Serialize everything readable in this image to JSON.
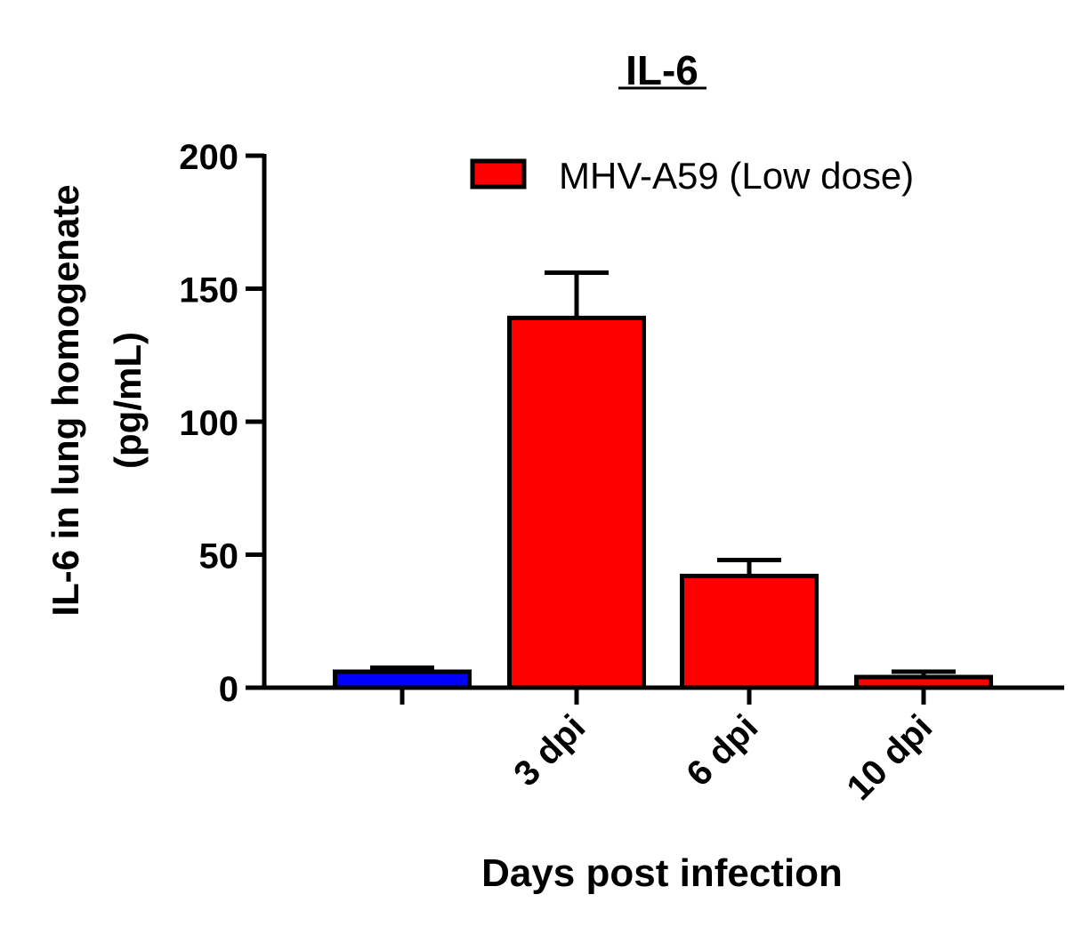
{
  "chart_data": {
    "type": "bar",
    "title": "IL-6",
    "xlabel": "Days post infection",
    "ylabel_line1": "IL-6 in lung homogenate",
    "ylabel_line2": "(pg/mL)",
    "ylim": [
      0,
      200
    ],
    "yticks": [
      0,
      50,
      100,
      150,
      200
    ],
    "categories": [
      "",
      "3 dpi",
      "6 dpi",
      "10 dpi"
    ],
    "values": [
      6,
      139,
      42,
      4
    ],
    "errors": [
      1.5,
      17,
      6,
      2
    ],
    "bar_colors": [
      "#0000ff",
      "#ff0000",
      "#ff0000",
      "#ff0000"
    ],
    "legend": [
      {
        "label": "MHV-A59 (Low dose)",
        "color": "#ff0000"
      }
    ],
    "grid": false
  }
}
